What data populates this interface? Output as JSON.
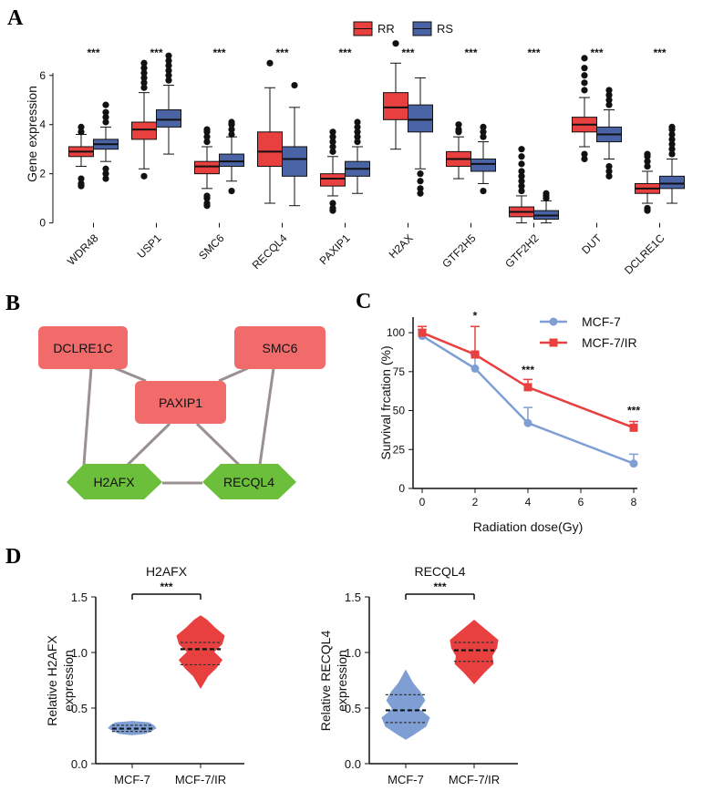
{
  "panels": {
    "a": {
      "letter": "A"
    },
    "b": {
      "letter": "B"
    },
    "c": {
      "letter": "C"
    },
    "d": {
      "letter": "D"
    }
  },
  "colors": {
    "red": "#e8403f",
    "blue": "#4a63a5",
    "light_blue": "#7f9fd4",
    "node_red": "#f26b6b",
    "node_green": "#6cbf3a",
    "edge": "#9a9090"
  },
  "network": {
    "nodes": [
      {
        "id": "DCLRE1C",
        "label": "DCLRE1C",
        "shape": "rect",
        "color": "red"
      },
      {
        "id": "SMC6",
        "label": "SMC6",
        "shape": "rect",
        "color": "red"
      },
      {
        "id": "PAXIP1",
        "label": "PAXIP1",
        "shape": "rect",
        "color": "red"
      },
      {
        "id": "H2AFX",
        "label": "H2AFX",
        "shape": "hexagon",
        "color": "green"
      },
      {
        "id": "RECQL4",
        "label": "RECQL4",
        "shape": "hexagon",
        "color": "green"
      }
    ],
    "edges": [
      [
        "DCLRE1C",
        "PAXIP1"
      ],
      [
        "SMC6",
        "PAXIP1"
      ],
      [
        "DCLRE1C",
        "H2AFX"
      ],
      [
        "SMC6",
        "RECQL4"
      ],
      [
        "PAXIP1",
        "H2AFX"
      ],
      [
        "PAXIP1",
        "RECQL4"
      ],
      [
        "H2AFX",
        "RECQL4"
      ]
    ]
  },
  "chart_data": [
    {
      "type": "box",
      "panel": "A",
      "ylabel": "Gene expression",
      "ylim": [
        -0.2,
        7.4
      ],
      "yticks": [
        0,
        2,
        4,
        6
      ],
      "legend": [
        {
          "name": "RR",
          "color": "#e8403f"
        },
        {
          "name": "RS",
          "color": "#4a63a5"
        }
      ],
      "legend_position": "top-center",
      "categories": [
        "WDR48",
        "USP1",
        "SMC6",
        "RECQL4",
        "PAXIP1",
        "H2AX",
        "GTF2H5",
        "GTF2H2",
        "DUT",
        "DCLRE1C"
      ],
      "significance": [
        "***",
        "***",
        "***",
        "***",
        "***",
        "***",
        "***",
        "***",
        "***",
        "***"
      ],
      "series": [
        {
          "name": "RR",
          "boxes": [
            {
              "min": 2.3,
              "q1": 2.7,
              "median": 2.9,
              "q3": 3.1,
              "max": 3.6,
              "outliers": [
                1.6,
                1.5,
                1.8,
                3.9,
                3.7
              ]
            },
            {
              "min": 2.2,
              "q1": 3.4,
              "median": 3.8,
              "q3": 4.1,
              "max": 5.3,
              "outliers": [
                1.9,
                5.5,
                5.7,
                5.9,
                6.1,
                6.3,
                6.5
              ]
            },
            {
              "min": 1.4,
              "q1": 2.0,
              "median": 2.3,
              "q3": 2.5,
              "max": 3.1,
              "outliers": [
                0.7,
                0.8,
                1.0,
                1.1,
                3.3,
                3.5,
                3.7,
                3.8
              ]
            },
            {
              "min": 0.8,
              "q1": 2.3,
              "median": 2.9,
              "q3": 3.7,
              "max": 5.5,
              "outliers": [
                6.5
              ]
            },
            {
              "min": 1.1,
              "q1": 1.5,
              "median": 1.8,
              "q3": 2.0,
              "max": 2.7,
              "outliers": [
                0.5,
                0.6,
                0.8,
                2.9,
                3.1,
                3.3,
                3.5,
                3.7
              ]
            },
            {
              "min": 3.0,
              "q1": 4.2,
              "median": 4.7,
              "q3": 5.3,
              "max": 6.5,
              "outliers": [
                7.3
              ]
            },
            {
              "min": 1.8,
              "q1": 2.3,
              "median": 2.6,
              "q3": 2.9,
              "max": 3.5,
              "outliers": [
                3.7,
                3.8,
                4.0
              ]
            },
            {
              "min": 0.0,
              "q1": 0.25,
              "median": 0.45,
              "q3": 0.65,
              "max": 1.1,
              "outliers": [
                1.3,
                1.5,
                1.7,
                1.9,
                2.1,
                2.4,
                2.7,
                3.0
              ]
            },
            {
              "min": 3.1,
              "q1": 3.7,
              "median": 4.0,
              "q3": 4.3,
              "max": 5.1,
              "outliers": [
                2.6,
                2.8,
                5.4,
                5.7,
                6.0,
                6.3,
                6.7
              ]
            },
            {
              "min": 0.8,
              "q1": 1.2,
              "median": 1.4,
              "q3": 1.6,
              "max": 2.1,
              "outliers": [
                0.5,
                0.6,
                2.3,
                2.5,
                2.7,
                2.8
              ]
            }
          ]
        },
        {
          "name": "RS",
          "boxes": [
            {
              "min": 2.5,
              "q1": 3.0,
              "median": 3.2,
              "q3": 3.4,
              "max": 3.9,
              "outliers": [
                1.8,
                2.0,
                2.2,
                4.1,
                4.3,
                4.5,
                4.8
              ]
            },
            {
              "min": 2.8,
              "q1": 3.9,
              "median": 4.2,
              "q3": 4.6,
              "max": 5.6,
              "outliers": [
                5.8,
                6.0,
                6.2,
                6.4,
                6.6,
                6.8
              ]
            },
            {
              "min": 1.7,
              "q1": 2.3,
              "median": 2.5,
              "q3": 2.8,
              "max": 3.5,
              "outliers": [
                1.3,
                3.6,
                3.8,
                4.0,
                4.1
              ]
            },
            {
              "min": 0.7,
              "q1": 1.9,
              "median": 2.6,
              "q3": 3.1,
              "max": 4.7,
              "outliers": [
                5.6
              ]
            },
            {
              "min": 1.2,
              "q1": 1.9,
              "median": 2.2,
              "q3": 2.5,
              "max": 3.1,
              "outliers": [
                3.3,
                3.5,
                3.7,
                3.9,
                4.1
              ]
            },
            {
              "min": 2.2,
              "q1": 3.7,
              "median": 4.2,
              "q3": 4.8,
              "max": 5.9,
              "outliers": [
                1.2,
                1.4,
                1.7,
                2.0
              ]
            },
            {
              "min": 1.6,
              "q1": 2.1,
              "median": 2.4,
              "q3": 2.6,
              "max": 3.3,
              "outliers": [
                1.3,
                3.5,
                3.7,
                3.9
              ]
            },
            {
              "min": 0.0,
              "q1": 0.15,
              "median": 0.3,
              "q3": 0.5,
              "max": 0.9,
              "outliers": [
                1.0,
                1.1,
                1.2
              ]
            },
            {
              "min": 2.6,
              "q1": 3.3,
              "median": 3.6,
              "q3": 3.9,
              "max": 4.6,
              "outliers": [
                1.9,
                2.1,
                2.3,
                4.8,
                5.0,
                5.2,
                5.4
              ]
            },
            {
              "min": 0.8,
              "q1": 1.4,
              "median": 1.6,
              "q3": 1.9,
              "max": 2.6,
              "outliers": [
                2.8,
                3.0,
                3.2,
                3.4,
                3.6,
                3.8,
                3.9
              ]
            }
          ]
        }
      ]
    },
    {
      "type": "line",
      "panel": "C",
      "xlabel": "Radiation dose(Gy)",
      "ylabel": "Survival frcation (%)",
      "xlim": [
        0,
        8
      ],
      "ylim": [
        0,
        110
      ],
      "xticks": [
        0,
        2,
        4,
        6,
        8
      ],
      "yticks": [
        0,
        25,
        50,
        75,
        100
      ],
      "legend_position": "top-right",
      "series": [
        {
          "name": "MCF-7",
          "color": "#7f9fd4",
          "marker": "circle",
          "x": [
            0,
            2,
            4,
            8
          ],
          "y": [
            98,
            77,
            42,
            16
          ],
          "err": [
            4,
            9,
            10,
            6
          ]
        },
        {
          "name": "MCF-7/IR",
          "color": "#e8403f",
          "marker": "square",
          "x": [
            0,
            2,
            4,
            8
          ],
          "y": [
            100,
            86,
            65,
            39
          ],
          "err": [
            4,
            18,
            5,
            4
          ]
        }
      ],
      "annotations": [
        {
          "x": 2,
          "y": 111,
          "text": "*"
        },
        {
          "x": 4,
          "y": 76,
          "text": "***"
        },
        {
          "x": 8,
          "y": 50,
          "text": "***"
        }
      ]
    },
    {
      "type": "violin",
      "panel": "D",
      "title": "H2AFX",
      "ylabel": "Relative H2AFX expression",
      "ylim": [
        0,
        1.5
      ],
      "yticks": [
        "0.0",
        "0.5",
        "1.0",
        "1.5"
      ],
      "categories": [
        "MCF-7",
        "MCF-7/IR"
      ],
      "significance": "***",
      "groups": [
        {
          "name": "MCF-7",
          "color": "#7f9fd4",
          "min": 0.26,
          "max": 0.38,
          "q1": 0.29,
          "median": 0.315,
          "q3": 0.345,
          "profile": [
            0.55,
            0.8,
            1.0,
            0.9,
            0.7
          ]
        },
        {
          "name": "MCF-7/IR",
          "color": "#e8403f",
          "min": 0.68,
          "max": 1.33,
          "q1": 0.89,
          "median": 1.03,
          "q3": 1.09,
          "profile": [
            0.1,
            0.3,
            0.65,
            0.9,
            0.55,
            0.9,
            1.0,
            0.6,
            0.25
          ]
        }
      ]
    },
    {
      "type": "violin",
      "panel": "D",
      "title": "RECQL4",
      "ylabel": "Relative RECQL4 expression",
      "ylim": [
        0,
        1.5
      ],
      "yticks": [
        "0.0",
        "0.5",
        "1.0",
        "1.5"
      ],
      "categories": [
        "MCF-7",
        "MCF-7/IR"
      ],
      "significance": "***",
      "groups": [
        {
          "name": "MCF-7",
          "color": "#7f9fd4",
          "min": 0.22,
          "max": 0.84,
          "q1": 0.37,
          "median": 0.48,
          "q3": 0.62,
          "profile": [
            0.3,
            0.85,
            1.0,
            0.55,
            0.8,
            0.6,
            0.3,
            0.1
          ]
        },
        {
          "name": "MCF-7/IR",
          "color": "#e8403f",
          "min": 0.72,
          "max": 1.29,
          "q1": 0.92,
          "median": 1.02,
          "q3": 1.09,
          "profile": [
            0.15,
            0.45,
            0.8,
            0.75,
            0.95,
            1.0,
            0.6,
            0.2
          ]
        }
      ]
    }
  ]
}
